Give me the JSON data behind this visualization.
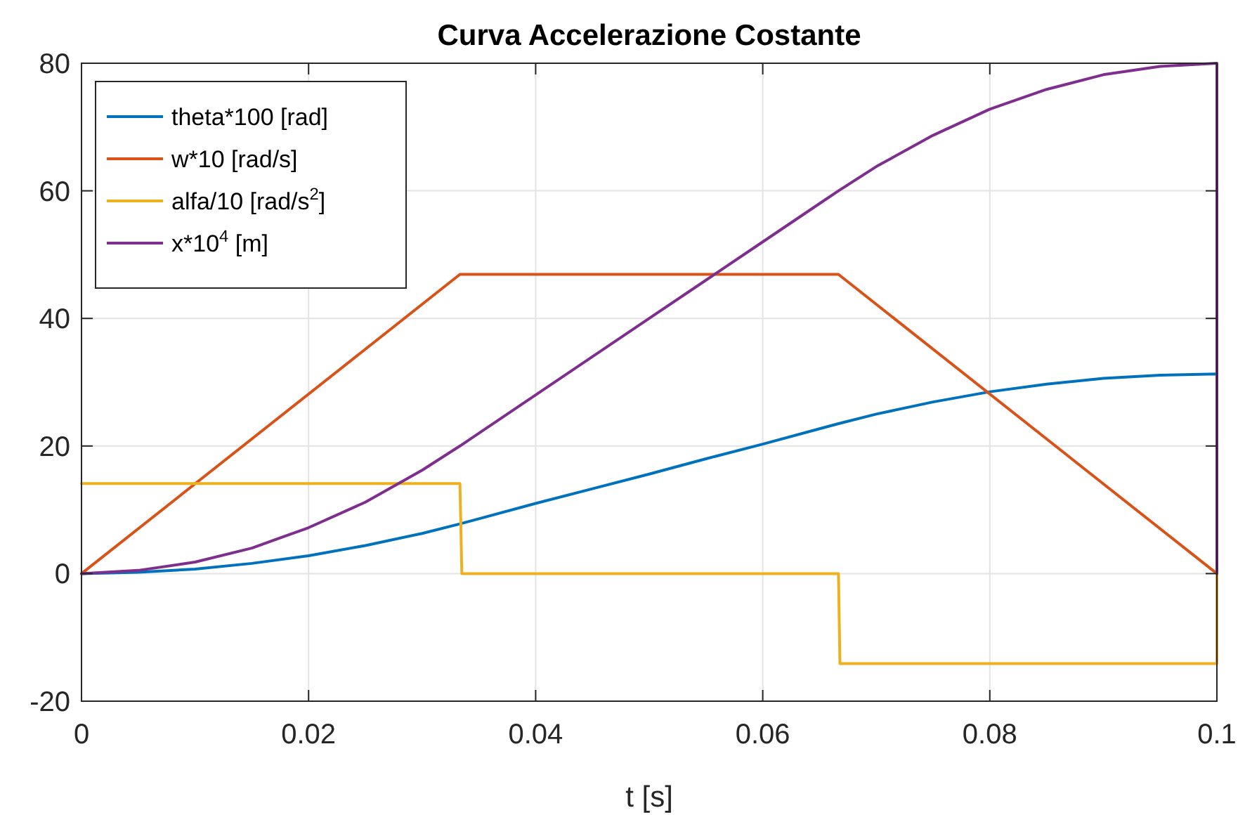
{
  "chart_data": {
    "type": "line",
    "title": "Curva Accelerazione Costante",
    "xlabel": "t [s]",
    "xlim": [
      0,
      0.1
    ],
    "xticks": [
      0,
      0.02,
      0.04,
      0.06,
      0.08,
      {
        "value": 0.1,
        "label": "0.1"
      }
    ],
    "ylim": [
      -20,
      80
    ],
    "yticks": [
      -20,
      0,
      20,
      40,
      60,
      80
    ],
    "grid": true,
    "legend": "top left",
    "line_style": "solid",
    "series": [
      {
        "name": "theta*100 [rad]",
        "color": "#0072bd",
        "x": [
          0,
          0.005,
          0.01,
          0.015,
          0.02,
          0.025,
          0.03,
          0.03333,
          0.035,
          0.04,
          0.045,
          0.05,
          0.055,
          0.06,
          0.065,
          0.06667,
          0.07,
          0.075,
          0.08,
          0.085,
          0.09,
          0.095,
          0.1,
          0.1
        ],
        "values": [
          0,
          0.2,
          0.7,
          1.6,
          2.8,
          4.4,
          6.3,
          7.8,
          8.6,
          11,
          13.3,
          15.6,
          18,
          20.3,
          22.7,
          23.5,
          25,
          26.9,
          28.5,
          29.7,
          30.6,
          31.1,
          31.3,
          0
        ]
      },
      {
        "name": "w*10 [rad/s]",
        "color": "#d95319",
        "x": [
          0,
          0.03333,
          0.06667,
          0.1
        ],
        "values": [
          0,
          46.9,
          46.9,
          0
        ]
      },
      {
        "name": "alfa/10 [rad/s$^{2}$]",
        "color": "#edb120",
        "x": [
          0,
          0.03333,
          0.0335,
          0.06667,
          0.0668,
          0.1,
          0.1
        ],
        "values": [
          14.1,
          14.1,
          0,
          0,
          -14.1,
          -14.1,
          0
        ]
      },
      {
        "name": "x*10$^{4}$ [m]",
        "color": "#7e2f8e",
        "x": [
          0,
          0.005,
          0.01,
          0.015,
          0.02,
          0.025,
          0.03,
          0.03333,
          0.035,
          0.04,
          0.045,
          0.05,
          0.055,
          0.06,
          0.065,
          0.06667,
          0.07,
          0.075,
          0.08,
          0.085,
          0.09,
          0.095,
          0.1,
          0.1
        ],
        "values": [
          0,
          0.5,
          1.8,
          4,
          7.2,
          11.2,
          16.2,
          20,
          22,
          28,
          34,
          40,
          46,
          52,
          58,
          60,
          63.8,
          68.7,
          72.8,
          75.9,
          78.2,
          79.5,
          80,
          0
        ]
      }
    ]
  }
}
